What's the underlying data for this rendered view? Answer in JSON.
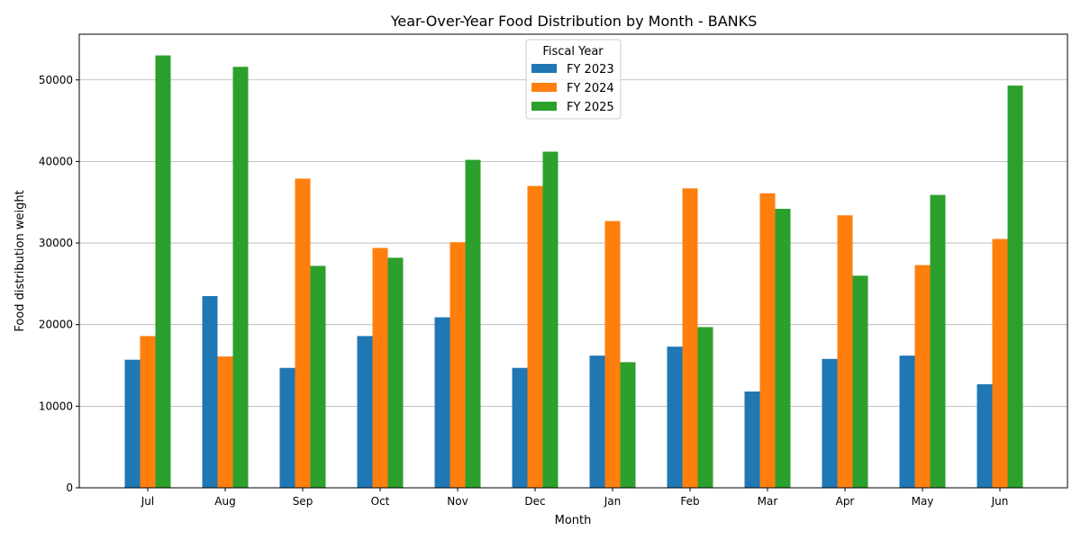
{
  "chart_data": {
    "type": "bar",
    "title": "Year-Over-Year Food Distribution by Month - BANKS",
    "xlabel": "Month",
    "ylabel": "Food distribution weight",
    "categories": [
      "Jul",
      "Aug",
      "Sep",
      "Oct",
      "Nov",
      "Dec",
      "Jan",
      "Feb",
      "Mar",
      "Apr",
      "May",
      "Jun"
    ],
    "series": [
      {
        "name": "FY 2023",
        "color": "#1f77b4",
        "values": [
          15700,
          23500,
          14700,
          18600,
          20900,
          14700,
          16200,
          17300,
          11800,
          15800,
          16200,
          12700
        ]
      },
      {
        "name": "FY 2024",
        "color": "#ff7f0e",
        "values": [
          18600,
          16100,
          37900,
          29400,
          30100,
          37000,
          32700,
          36700,
          36100,
          33400,
          27300,
          30500
        ]
      },
      {
        "name": "FY 2025",
        "color": "#2ca02c",
        "values": [
          53000,
          51600,
          27200,
          28200,
          40200,
          41200,
          15400,
          19700,
          34200,
          26000,
          35900,
          49300
        ]
      }
    ],
    "ylim": [
      0,
      55600
    ],
    "yticks": [
      0,
      10000,
      20000,
      30000,
      40000,
      50000
    ],
    "grid": "y",
    "legend": {
      "title": "Fiscal Year",
      "placement": "upper-center"
    }
  }
}
